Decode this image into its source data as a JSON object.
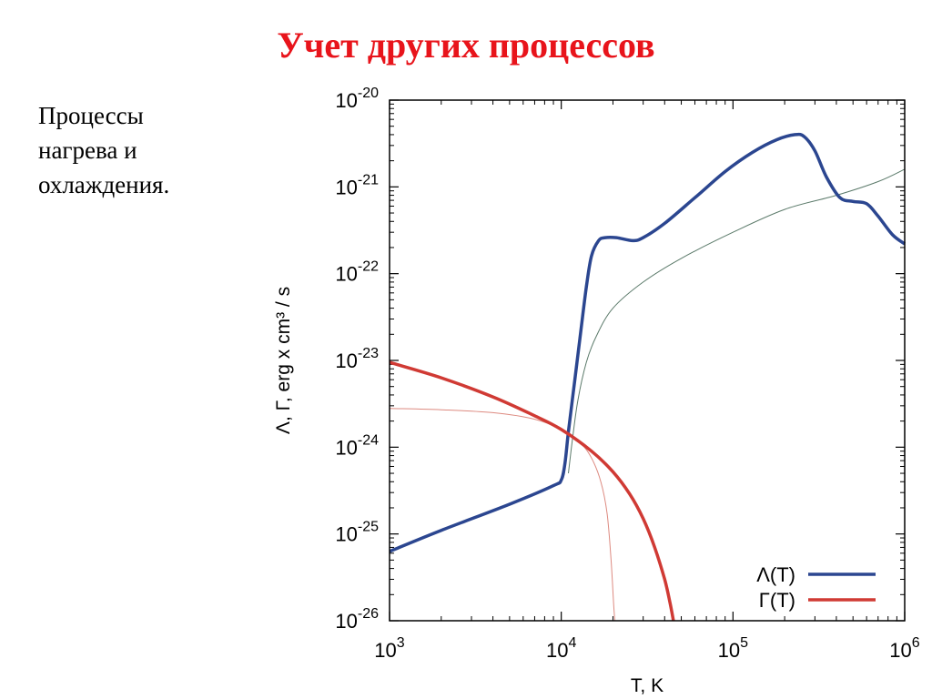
{
  "slide": {
    "title": "Учет других процессов",
    "side_text": [
      "Процессы",
      "нагрева и",
      "охлаждения."
    ]
  },
  "chart_data": {
    "type": "line",
    "xlabel": "T, K",
    "ylabel": "Λ, Γ, erg x cm³ / s",
    "x_scale": "log",
    "y_scale": "log",
    "xlim": [
      1000,
      1000000
    ],
    "ylim": [
      1e-26,
      1e-20
    ],
    "x_ticks": [
      {
        "value": 1000,
        "base": "10",
        "exp": "3"
      },
      {
        "value": 10000,
        "base": "10",
        "exp": "4"
      },
      {
        "value": 100000,
        "base": "10",
        "exp": "5"
      },
      {
        "value": 1000000,
        "base": "10",
        "exp": "6"
      }
    ],
    "y_ticks": [
      {
        "value": 1e-20,
        "base": "10",
        "exp": "-20"
      },
      {
        "value": 1e-21,
        "base": "10",
        "exp": "-21"
      },
      {
        "value": 1e-22,
        "base": "10",
        "exp": "-22"
      },
      {
        "value": 1e-23,
        "base": "10",
        "exp": "-23"
      },
      {
        "value": 1e-24,
        "base": "10",
        "exp": "-24"
      },
      {
        "value": 1e-25,
        "base": "10",
        "exp": "-25"
      },
      {
        "value": 1e-26,
        "base": "10",
        "exp": "-26"
      }
    ],
    "legend_position": "bottom-right",
    "series": [
      {
        "name": "Λ(T)",
        "color": "#2b4690",
        "thick": true,
        "in_legend": true,
        "points": [
          [
            1000,
            6.3e-26
          ],
          [
            2000,
            1.1e-25
          ],
          [
            5000,
            2.2e-25
          ],
          [
            9000,
            3.6e-25
          ],
          [
            10000,
            4.2e-25
          ],
          [
            10500,
            6.5e-25
          ],
          [
            11000,
            1.5e-24
          ],
          [
            12000,
            6e-24
          ],
          [
            13000,
            2.2e-23
          ],
          [
            14000,
            7e-23
          ],
          [
            15000,
            1.6e-22
          ],
          [
            16500,
            2.4e-22
          ],
          [
            18000,
            2.6e-22
          ],
          [
            21000,
            2.6e-22
          ],
          [
            26000,
            2.4e-22
          ],
          [
            30000,
            2.6e-22
          ],
          [
            40000,
            3.8e-22
          ],
          [
            60000,
            7.5e-22
          ],
          [
            90000,
            1.5e-21
          ],
          [
            130000,
            2.5e-21
          ],
          [
            180000,
            3.5e-21
          ],
          [
            230000,
            4e-21
          ],
          [
            260000,
            3.8e-21
          ],
          [
            300000,
            2.6e-21
          ],
          [
            350000,
            1.3e-21
          ],
          [
            420000,
            7.5e-22
          ],
          [
            500000,
            6.8e-22
          ],
          [
            600000,
            6.4e-22
          ],
          [
            700000,
            4.6e-22
          ],
          [
            850000,
            2.8e-22
          ],
          [
            1000000,
            2.2e-22
          ]
        ]
      },
      {
        "name": "Γ(T)",
        "color": "#d03a34",
        "thick": true,
        "in_legend": true,
        "points": [
          [
            1000,
            9.5e-24
          ],
          [
            2000,
            6.3e-24
          ],
          [
            4000,
            3.8e-24
          ],
          [
            7000,
            2.3e-24
          ],
          [
            10000,
            1.6e-24
          ],
          [
            15000,
            9e-25
          ],
          [
            20000,
            5.2e-25
          ],
          [
            25000,
            2.9e-25
          ],
          [
            30000,
            1.5e-25
          ],
          [
            35000,
            7e-26
          ],
          [
            40000,
            3e-26
          ],
          [
            43000,
            1.6e-26
          ],
          [
            45000,
            1e-26
          ]
        ]
      },
      {
        "name": "",
        "color": "#5b7a6a",
        "thick": false,
        "in_legend": false,
        "points": [
          [
            11000,
            5e-25
          ],
          [
            11600,
            1.2e-24
          ],
          [
            12500,
            3.5e-24
          ],
          [
            14000,
            9.5e-24
          ],
          [
            16000,
            1.9e-23
          ],
          [
            20000,
            4e-23
          ],
          [
            30000,
            8e-23
          ],
          [
            50000,
            1.5e-22
          ],
          [
            100000,
            3e-22
          ],
          [
            200000,
            5.5e-22
          ],
          [
            400000,
            8e-22
          ],
          [
            700000,
            1.15e-21
          ],
          [
            1000000,
            1.6e-21
          ]
        ]
      },
      {
        "name": "",
        "color": "#dd8a80",
        "thick": false,
        "in_legend": false,
        "points": [
          [
            1000,
            2.8e-24
          ],
          [
            2000,
            2.7e-24
          ],
          [
            4000,
            2.5e-24
          ],
          [
            7000,
            2.1e-24
          ],
          [
            10000,
            1.6e-24
          ],
          [
            13000,
            1.1e-24
          ],
          [
            15000,
            7.5e-25
          ],
          [
            17000,
            4e-25
          ],
          [
            18500,
            1.7e-25
          ],
          [
            19500,
            5e-26
          ],
          [
            20200,
            1.5e-26
          ],
          [
            20500,
            1e-26
          ]
        ]
      }
    ]
  }
}
